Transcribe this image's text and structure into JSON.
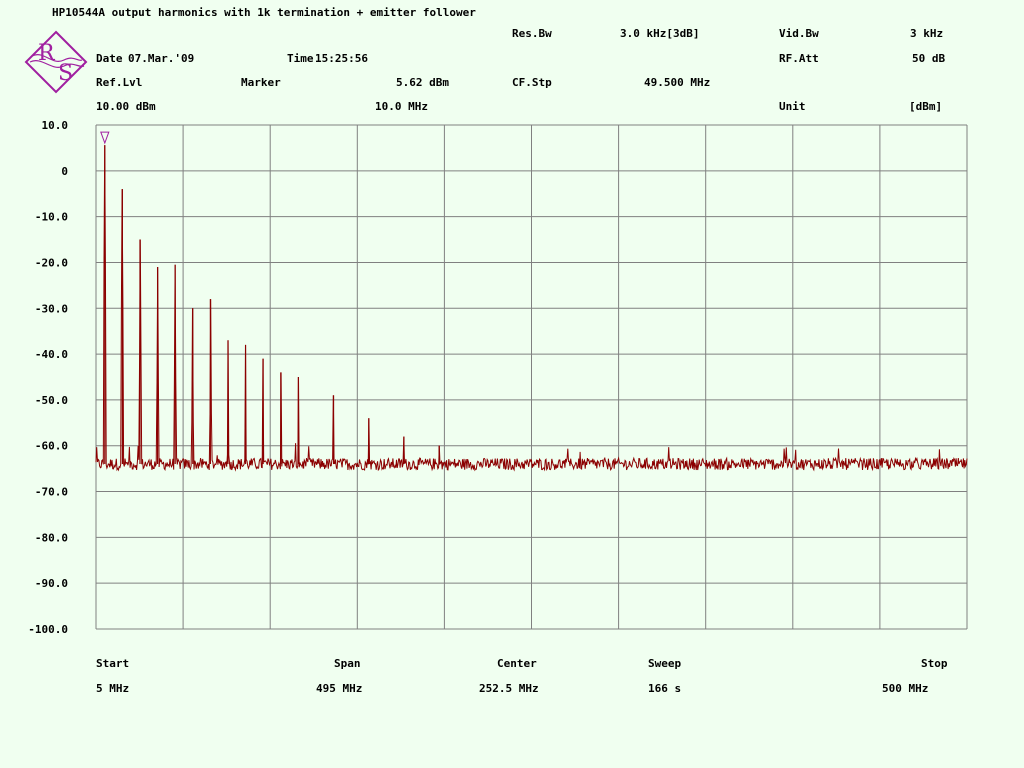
{
  "header": {
    "title": "HP10544A output harmonics with 1k termination + emitter follower",
    "date_label": "Date",
    "date_value": "07.Mar.'09",
    "time_label": "Time",
    "time_value": "15:25:56",
    "res_bw_label": "Res.Bw",
    "res_bw_value": "3.0 kHz[3dB]",
    "vid_bw_label": "Vid.Bw",
    "vid_bw_value": "3 kHz",
    "rf_att_label": "RF.Att",
    "rf_att_value": "50 dB",
    "ref_lvl_label": "Ref.Lvl",
    "ref_lvl_value": "10.00 dBm",
    "marker_label": "Marker",
    "marker_level": "5.62 dBm",
    "marker_freq": "10.0 MHz",
    "cf_stp_label": "CF.Stp",
    "cf_stp_value": "49.500 MHz",
    "unit_label": "Unit",
    "unit_value": "[dBm]"
  },
  "footer": {
    "start_label": "Start",
    "start_value": "5 MHz",
    "span_label": "Span",
    "span_value": "495 MHz",
    "center_label": "Center",
    "center_value": "252.5 MHz",
    "sweep_label": "Sweep",
    "sweep_value": "166 s",
    "stop_label": "Stop",
    "stop_value": "500 MHz"
  },
  "logo": {
    "letters": [
      "R",
      "S"
    ],
    "color": "#a020a0"
  },
  "chart_data": {
    "type": "line",
    "x_unit": "MHz",
    "y_unit": "dBm",
    "xlim": [
      5,
      500
    ],
    "ylim": [
      -100,
      10
    ],
    "y_ticks": [
      10,
      0,
      -10,
      -20,
      -30,
      -40,
      -50,
      -60,
      -70,
      -80,
      -90,
      -100
    ],
    "y_tick_labels": [
      "10.0",
      "0",
      "-10.0",
      "-20.0",
      "-30.0",
      "-40.0",
      "-50.0",
      "-60.0",
      "-70.0",
      "-80.0",
      "-90.0",
      "-100.0"
    ],
    "x_divisions": 10,
    "grid": true,
    "noise_floor": -64,
    "harmonics": [
      {
        "freq": 10,
        "level": 5.6
      },
      {
        "freq": 20,
        "level": -4
      },
      {
        "freq": 30,
        "level": -15
      },
      {
        "freq": 40,
        "level": -21
      },
      {
        "freq": 50,
        "level": -20.5
      },
      {
        "freq": 60,
        "level": -30
      },
      {
        "freq": 70,
        "level": -28
      },
      {
        "freq": 80,
        "level": -37
      },
      {
        "freq": 90,
        "level": -38
      },
      {
        "freq": 100,
        "level": -41
      },
      {
        "freq": 110,
        "level": -44
      },
      {
        "freq": 120,
        "level": -45
      },
      {
        "freq": 140,
        "level": -49
      },
      {
        "freq": 160,
        "level": -54
      },
      {
        "freq": 180,
        "level": -58
      },
      {
        "freq": 200,
        "level": -60
      }
    ],
    "marker": {
      "freq": 10,
      "level": 5.62
    },
    "colors": {
      "trace": "#8b0000",
      "grid": "#808080",
      "frame": "#808080",
      "marker": "#a020a0"
    }
  }
}
